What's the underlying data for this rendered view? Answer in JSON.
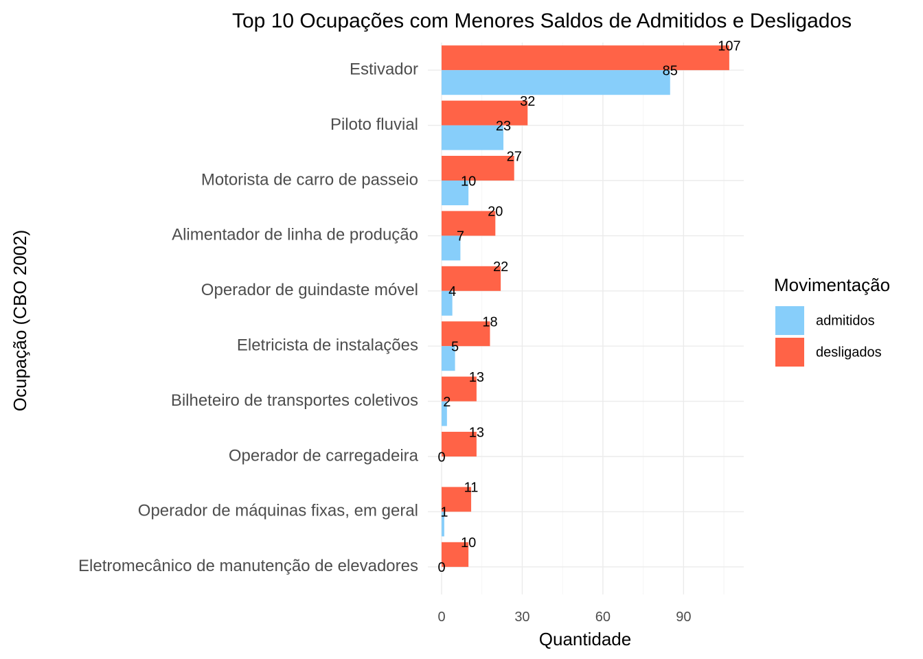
{
  "chart_data": {
    "type": "bar",
    "orientation": "horizontal",
    "title": "Top 10 Ocupações com Menores Saldos de Admitidos e Desligados",
    "xlabel": "Quantidade",
    "ylabel": "Ocupação (CBO 2002)",
    "categories": [
      "Estivador",
      "Piloto fluvial",
      "Motorista de carro de passeio",
      "Alimentador de linha de produção",
      "Operador de guindaste móvel",
      "Eletricista de instalações",
      "Bilheteiro de transportes coletivos",
      "Operador de carregadeira",
      "Operador de máquinas fixas, em geral",
      "Eletromecânico de manutenção de elevadores"
    ],
    "series": [
      {
        "name": "admitidos",
        "color": "#87CEFA",
        "values": [
          85,
          23,
          10,
          7,
          4,
          5,
          2,
          0,
          1,
          0
        ]
      },
      {
        "name": "desligados",
        "color": "#FF6347",
        "values": [
          107,
          32,
          27,
          20,
          22,
          18,
          13,
          13,
          11,
          10
        ]
      }
    ],
    "xlim": [
      0,
      112
    ],
    "xticks": [
      0,
      30,
      60,
      90
    ],
    "grid": true,
    "legend": {
      "title": "Movimentação",
      "position": "right"
    }
  }
}
